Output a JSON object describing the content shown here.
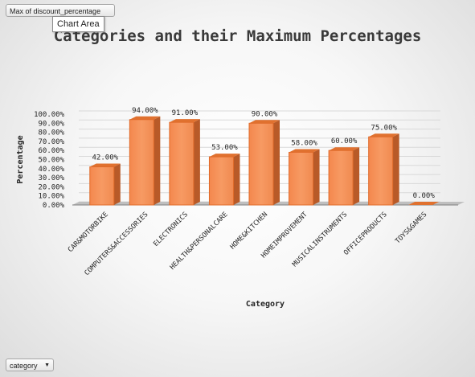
{
  "pivot": {
    "value_field": "Max of discount_percentage",
    "axis_field": "category",
    "tooltip": "Chart Area"
  },
  "chart_data": {
    "type": "bar",
    "title": "Categories and their Maximum Percentages",
    "xlabel": "Category",
    "ylabel": "Percentage",
    "ylim": [
      0,
      100
    ],
    "yticks": [
      "0.00%",
      "10.00%",
      "20.00%",
      "30.00%",
      "40.00%",
      "50.00%",
      "60.00%",
      "70.00%",
      "80.00%",
      "90.00%",
      "100.00%"
    ],
    "categories": [
      "CAR&MOTORBIKE",
      "COMPUTERS&ACCESSORIES",
      "ELECTRONICS",
      "HEALTH&PERSONALCARE",
      "HOME&KITCHEN",
      "HOMEIMPROVEMENT",
      "MUSICALINSTRUMENTS",
      "OFFICEPRODUCTS",
      "TOYS&GAMES"
    ],
    "values": [
      42,
      94,
      91,
      53,
      90,
      58,
      60,
      75,
      0
    ],
    "data_labels": [
      "42.00%",
      "94.00%",
      "91.00%",
      "53.00%",
      "90.00%",
      "58.00%",
      "60.00%",
      "75.00%",
      "0.00%"
    ],
    "bar_color": "#f79a63",
    "bar_side_color": "#b85a28",
    "grid": true,
    "legend": "none"
  }
}
